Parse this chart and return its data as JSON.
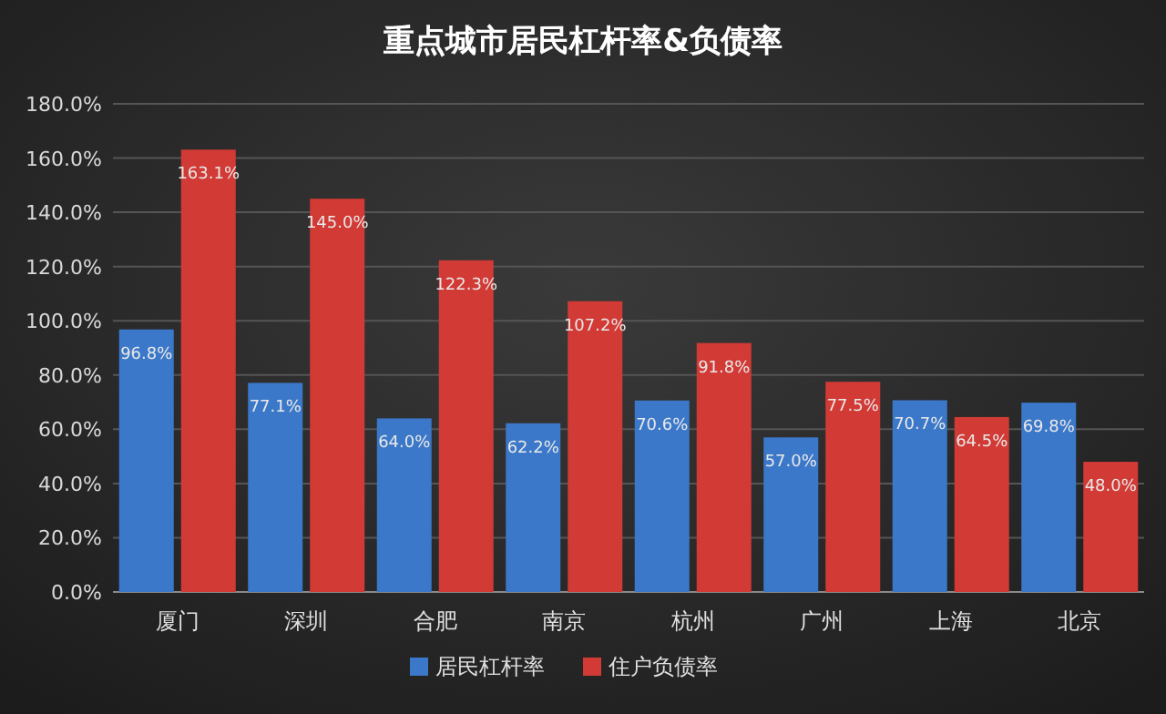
{
  "chart_data": {
    "type": "bar",
    "title": "重点城市居民杠杆率&负债率",
    "categories": [
      "厦门",
      "深圳",
      "合肥",
      "南京",
      "杭州",
      "广州",
      "上海",
      "北京"
    ],
    "series": [
      {
        "name": "居民杠杆率",
        "color": "#3b78c9",
        "values": [
          96.8,
          77.1,
          64.0,
          62.2,
          70.6,
          57.0,
          70.7,
          69.8
        ],
        "value_labels": [
          "96.8%",
          "77.1%",
          "64.0%",
          "62.2%",
          "70.6%",
          "57.0%",
          "70.7%",
          "69.8%"
        ]
      },
      {
        "name": "住户负债率",
        "color": "#d23a35",
        "values": [
          163.1,
          145.0,
          122.3,
          107.2,
          91.8,
          77.5,
          64.5,
          48.0
        ],
        "value_labels": [
          "163.1%",
          "145.0%",
          "122.3%",
          "107.2%",
          "91.8%",
          "77.5%",
          "64.5%",
          "48.0%"
        ]
      }
    ],
    "ylim": [
      0,
      180
    ],
    "yticks": [
      {
        "value": 0,
        "label": "0.0%"
      },
      {
        "value": 20,
        "label": "20.0%"
      },
      {
        "value": 40,
        "label": "40.0%"
      },
      {
        "value": 60,
        "label": "60.0%"
      },
      {
        "value": 80,
        "label": "80.0%"
      },
      {
        "value": 100,
        "label": "100.0%"
      },
      {
        "value": 120,
        "label": "120.0%"
      },
      {
        "value": 140,
        "label": "140.0%"
      },
      {
        "value": 160,
        "label": "160.0%"
      },
      {
        "value": 180,
        "label": "180.0%"
      }
    ],
    "grid": "y",
    "legend": "bottom"
  }
}
